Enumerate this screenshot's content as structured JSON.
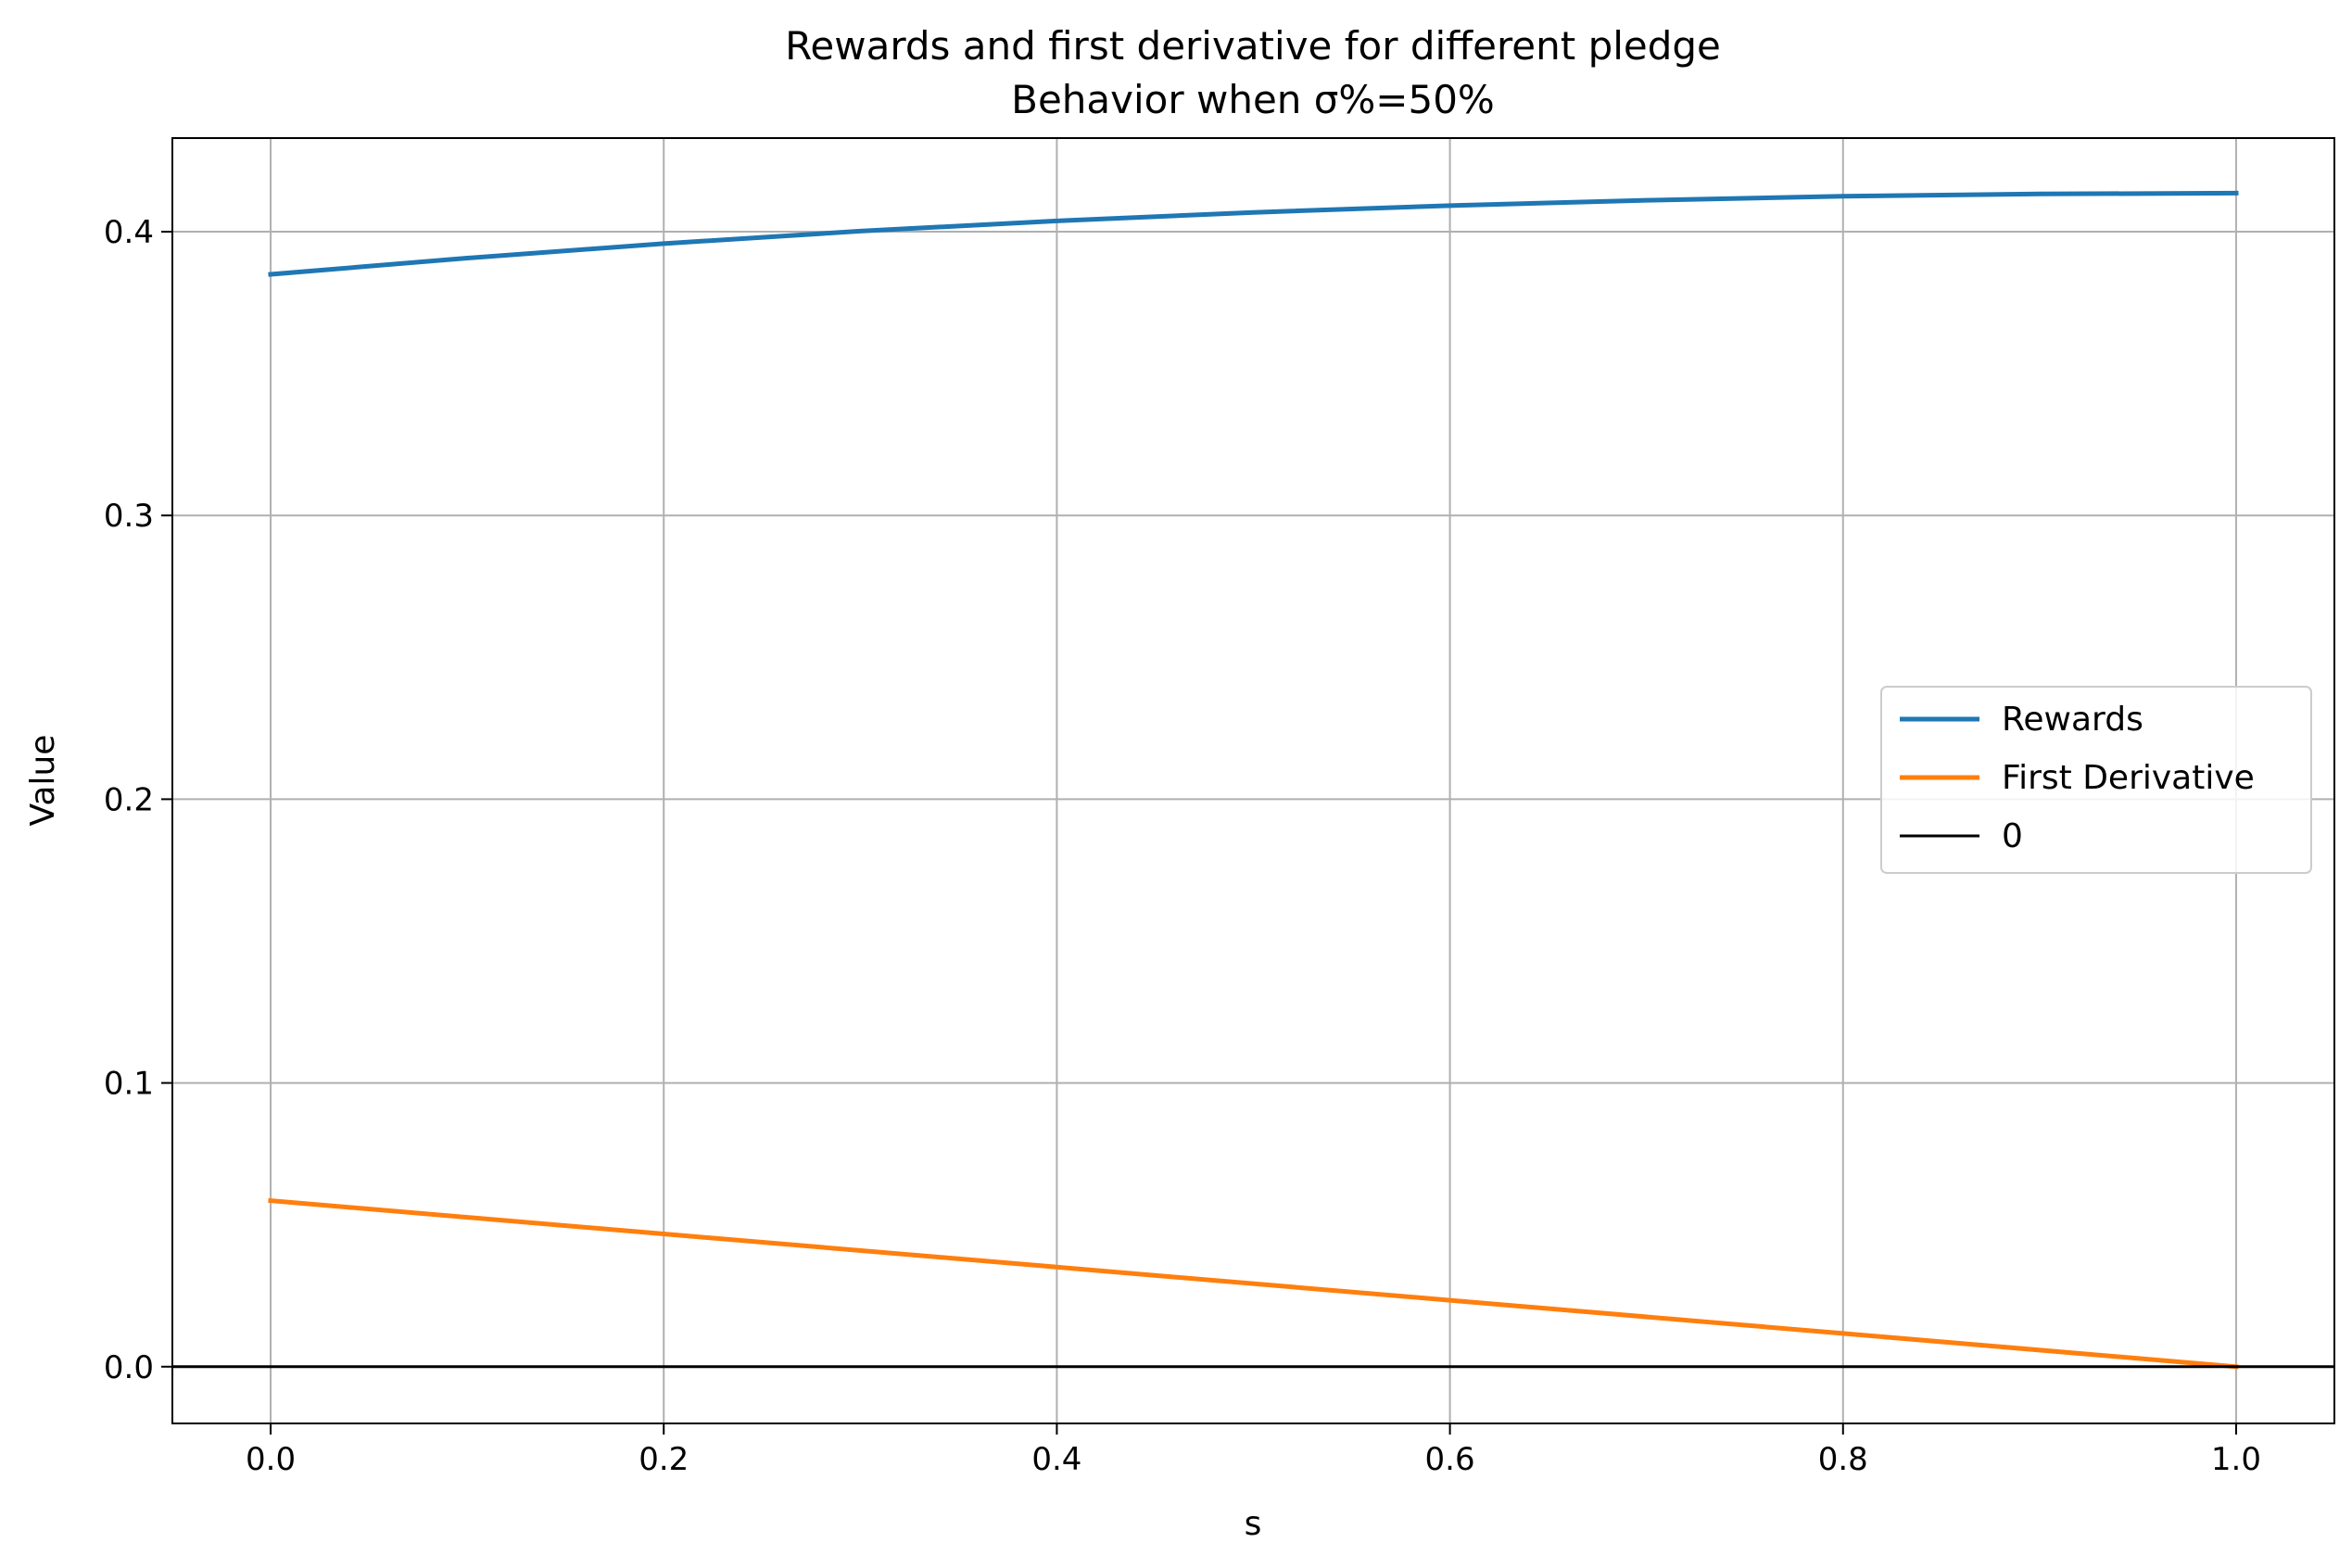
{
  "chart_data": {
    "type": "line",
    "title": "Rewards and first derivative for different pledge",
    "subtitle": "Behavior when σ%=50%",
    "xlabel": "s",
    "ylabel": "Value",
    "xlim": [
      -0.05,
      1.05
    ],
    "ylim": [
      -0.02,
      0.433
    ],
    "xticks": [
      0.0,
      0.2,
      0.4,
      0.6,
      0.8,
      1.0
    ],
    "xtick_labels": [
      "0.0",
      "0.2",
      "0.4",
      "0.6",
      "0.8",
      "1.0"
    ],
    "yticks": [
      0.0,
      0.1,
      0.2,
      0.3,
      0.4
    ],
    "ytick_labels": [
      "0.0",
      "0.1",
      "0.2",
      "0.3",
      "0.4"
    ],
    "grid": true,
    "legend_position": "center-right",
    "series": [
      {
        "name": "Rewards",
        "color": "#1f77b4",
        "x": [
          0.0,
          0.1,
          0.2,
          0.3,
          0.4,
          0.5,
          0.6,
          0.7,
          0.8,
          0.9,
          1.0
        ],
        "y": [
          0.385,
          0.3907,
          0.3958,
          0.4002,
          0.4038,
          0.4068,
          0.4092,
          0.4111,
          0.4125,
          0.4133,
          0.4136
        ]
      },
      {
        "name": "First Derivative",
        "color": "#ff7f0e",
        "x": [
          0.0,
          0.2,
          0.4,
          0.6,
          0.8,
          1.0
        ],
        "y": [
          0.0585,
          0.0468,
          0.0351,
          0.0234,
          0.0117,
          0.0
        ]
      },
      {
        "name": "0",
        "color": "#000000",
        "x": [
          -0.05,
          1.05
        ],
        "y": [
          0.0,
          0.0
        ]
      }
    ]
  }
}
